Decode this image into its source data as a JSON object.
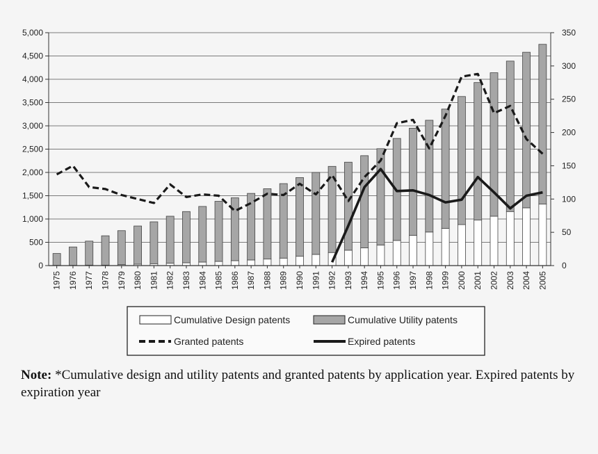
{
  "chart_data": {
    "type": "bar",
    "title": "",
    "xlabel": "",
    "ylabel": "",
    "y2label": "",
    "categories": [
      "1975",
      "1976",
      "1977",
      "1978",
      "1979",
      "1980",
      "1981",
      "1982",
      "1983",
      "1984",
      "1985",
      "1986",
      "1987",
      "1988",
      "1989",
      "1990",
      "1991",
      "1992",
      "1993",
      "1994",
      "1995",
      "1996",
      "1997",
      "1998",
      "1999",
      "2000",
      "2001",
      "2002",
      "2003",
      "2004",
      "2005"
    ],
    "ylim": [
      0,
      5000
    ],
    "y2lim": [
      0,
      350
    ],
    "y_ticks": [
      "0",
      "500",
      "1,000",
      "1,500",
      "2,000",
      "2,500",
      "3,000",
      "3,500",
      "4,000",
      "4,500",
      "5,000"
    ],
    "y2_ticks": [
      "0",
      "50",
      "100",
      "150",
      "200",
      "250",
      "300",
      "350"
    ],
    "grid": true,
    "legend_position": "bottom",
    "series": [
      {
        "name": "Cumulative Design patents",
        "kind": "stacked-bar",
        "axis": "left",
        "color": "#ffffff",
        "values": [
          5,
          5,
          10,
          10,
          20,
          30,
          40,
          50,
          60,
          75,
          90,
          105,
          120,
          140,
          160,
          200,
          240,
          280,
          330,
          380,
          440,
          540,
          650,
          720,
          800,
          880,
          980,
          1060,
          1160,
          1240,
          1320
        ]
      },
      {
        "name": "Cumulative Utility patents",
        "kind": "stacked-bar",
        "axis": "left",
        "color": "#a6a6a6",
        "values": [
          255,
          395,
          515,
          630,
          730,
          820,
          900,
          1010,
          1100,
          1195,
          1290,
          1350,
          1430,
          1510,
          1600,
          1690,
          1760,
          1850,
          1890,
          1980,
          2070,
          2190,
          2300,
          2400,
          2560,
          2750,
          2950,
          3080,
          3230,
          3340,
          3430
        ]
      },
      {
        "name": "Granted patents",
        "kind": "line",
        "style": "dashed",
        "axis": "right",
        "color": "#1a1a1a",
        "values": [
          137,
          150,
          118,
          115,
          106,
          100,
          94,
          122,
          103,
          107,
          105,
          82,
          94,
          108,
          106,
          123,
          107,
          136,
          97,
          133,
          158,
          214,
          219,
          176,
          225,
          284,
          288,
          229,
          240,
          190,
          168
        ]
      },
      {
        "name": "Expired patents",
        "kind": "line",
        "style": "solid",
        "axis": "right",
        "color": "#1a1a1a",
        "values": [
          null,
          null,
          null,
          null,
          null,
          null,
          null,
          null,
          null,
          null,
          null,
          null,
          null,
          null,
          null,
          null,
          null,
          5,
          60,
          118,
          145,
          112,
          113,
          106,
          95,
          99,
          133,
          110,
          86,
          105,
          110
        ]
      }
    ]
  },
  "legend": {
    "design_label": "Cumulative Design patents",
    "utility_label": "Cumulative Utility patents",
    "granted_label": "Granted patents",
    "expired_label": "Expired patents"
  },
  "note": {
    "label": "Note:",
    "text": " *Cumulative design and utility patents and granted patents by application year. Expired patents by expiration year"
  }
}
